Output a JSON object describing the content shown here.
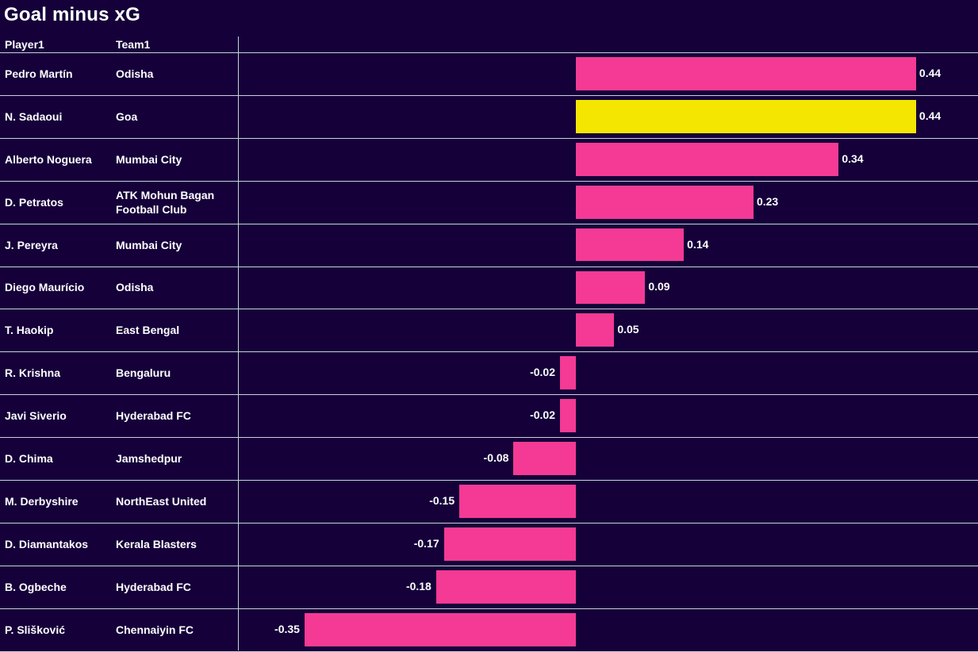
{
  "header": {
    "title": "Goal minus xG"
  },
  "columns": {
    "player": "Player1",
    "team": "Team1"
  },
  "colors": {
    "background": "#15003a",
    "bar": "#f43a94",
    "highlight": "#f4e600",
    "grid": "#cfcfdf"
  },
  "chart_data": {
    "type": "bar",
    "orientation": "horizontal",
    "title": "Goal minus xG",
    "players": [
      "Pedro Martín",
      "N. Sadaoui",
      "Alberto Noguera",
      "D. Petratos",
      "J. Pereyra",
      "Diego Maurício",
      "T. Haokip",
      "R. Krishna",
      "Javi Siverio",
      "D. Chima",
      "M. Derbyshire",
      "D. Diamantakos",
      "B. Ogbeche",
      "P. Slišković"
    ],
    "teams": [
      "Odisha",
      "Goa",
      "Mumbai City",
      "ATK Mohun Bagan Football Club",
      "Mumbai City",
      "Odisha",
      "East Bengal",
      "Bengaluru",
      "Hyderabad FC",
      "Jamshedpur",
      "NorthEast United",
      "Kerala Blasters",
      "Hyderabad FC",
      "Chennaiyin FC"
    ],
    "values": [
      0.44,
      0.44,
      0.34,
      0.23,
      0.14,
      0.09,
      0.05,
      -0.02,
      -0.02,
      -0.08,
      -0.15,
      -0.17,
      -0.18,
      -0.35
    ],
    "labels": [
      "0.44",
      "0.44",
      "0.34",
      "0.23",
      "0.14",
      "0.09",
      "0.05",
      "-0.02",
      "-0.02",
      "-0.08",
      "-0.15",
      "-0.17",
      "-0.18",
      "-0.35"
    ],
    "highlight_index": 1,
    "xlim": [
      -0.435,
      0.52
    ]
  }
}
